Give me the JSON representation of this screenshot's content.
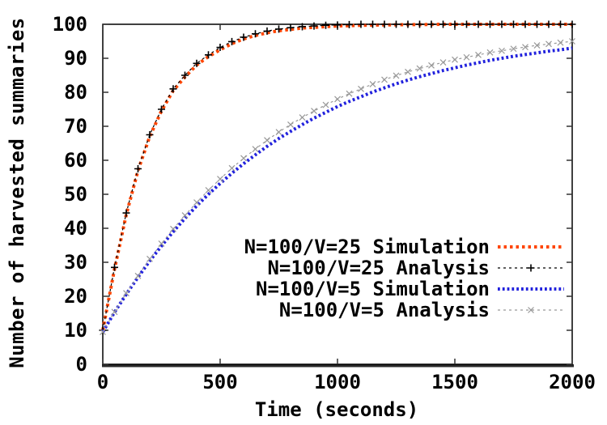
{
  "chart_data": {
    "type": "line",
    "title": "",
    "xlabel": "Time (seconds)",
    "ylabel": "Number of harvested summaries",
    "xlim": [
      0,
      2000
    ],
    "ylim": [
      0,
      100
    ],
    "x_ticks": [
      0,
      500,
      1000,
      1500,
      2000
    ],
    "y_ticks": [
      0,
      10,
      20,
      30,
      40,
      50,
      60,
      70,
      80,
      90,
      100
    ],
    "grid": false,
    "legend_position": "inside right-center",
    "axis_color": "#000000",
    "x": [
      0,
      50,
      100,
      150,
      200,
      250,
      300,
      350,
      400,
      450,
      500,
      550,
      600,
      650,
      700,
      750,
      800,
      850,
      900,
      950,
      1000,
      1050,
      1100,
      1150,
      1200,
      1250,
      1300,
      1350,
      1400,
      1450,
      1500,
      1550,
      1600,
      1650,
      1700,
      1750,
      1800,
      1850,
      1900,
      1950,
      2000
    ],
    "series": [
      {
        "name": "v25-simulation",
        "label": "N=100/V=25 Simulation",
        "color": "#ff4500",
        "linestyle": "thick-dotted",
        "marker": "none",
        "values": [
          10,
          28,
          44,
          57,
          67,
          74.5,
          80.5,
          84.5,
          88,
          90.5,
          92.5,
          94.3,
          95.7,
          96.7,
          97.5,
          98.1,
          98.5,
          98.9,
          99.1,
          99.3,
          99.5,
          99.6,
          99.7,
          99.75,
          99.8,
          99.85,
          99.9,
          99.9,
          99.95,
          100,
          100,
          100,
          100,
          100,
          100,
          100,
          100,
          100,
          100,
          100,
          100
        ]
      },
      {
        "name": "v25-analysis",
        "label": "N=100/V=25 Analysis",
        "color": "#000000",
        "linestyle": "thin-dashed",
        "marker": "plus",
        "values": [
          10,
          28.5,
          44.5,
          57.5,
          67.5,
          75,
          81,
          85,
          88.5,
          91,
          93.2,
          94.9,
          96.2,
          97.2,
          98,
          98.6,
          99,
          99.3,
          99.5,
          99.7,
          99.8,
          99.9,
          100,
          100,
          100,
          100,
          100,
          100,
          100,
          100,
          100,
          100,
          100,
          100,
          100,
          100,
          100,
          100,
          100,
          100,
          100
        ]
      },
      {
        "name": "v5-simulation",
        "label": "N=100/V=5 Simulation",
        "color": "#2222dd",
        "linestyle": "thick-dotted-dense",
        "marker": "none",
        "values": [
          9.5,
          15.3,
          20.6,
          25.6,
          30.4,
          34.8,
          39,
          42.9,
          46.6,
          50,
          53.2,
          56.2,
          59,
          61.6,
          64.1,
          66.4,
          68.5,
          70.5,
          72.4,
          74.1,
          75.8,
          77.3,
          78.7,
          80.1,
          81.3,
          82.5,
          83.6,
          84.6,
          85.5,
          86.4,
          87.2,
          88,
          88.7,
          89.4,
          90,
          90.6,
          91.1,
          91.6,
          92.1,
          92.5,
          93
        ]
      },
      {
        "name": "v5-analysis",
        "label": "N=100/V=5 Analysis",
        "color": "#999999",
        "linestyle": "thin-dashed",
        "marker": "cross",
        "values": [
          9.5,
          15.4,
          20.9,
          26,
          31,
          35.5,
          39.8,
          43.8,
          47.6,
          51.2,
          54.5,
          57.7,
          60.6,
          63.3,
          65.9,
          68.3,
          70.5,
          72.6,
          74.5,
          76.3,
          78,
          79.6,
          81,
          82.4,
          83.7,
          84.9,
          86,
          87,
          87.9,
          88.8,
          89.6,
          90.3,
          91,
          91.7,
          92.2,
          92.8,
          93.3,
          93.8,
          94.2,
          94.6,
          95
        ]
      }
    ]
  }
}
